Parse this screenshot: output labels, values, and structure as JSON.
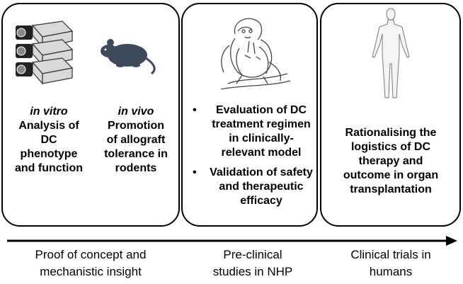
{
  "panels": [
    {
      "columns": [
        {
          "head": "in vitro",
          "text": [
            "Analysis of",
            "DC",
            "phenotype",
            "and function"
          ]
        },
        {
          "head": "in vivo",
          "text": [
            "Promotion",
            "of allograft",
            "tolerance in",
            "rodents"
          ]
        }
      ]
    },
    {
      "bullets": [
        [
          "Evaluation of DC",
          "treatment regimen",
          "in clinically-",
          "relevant model"
        ],
        [
          "Validation of safety",
          "and therapeutic",
          "efficacy"
        ]
      ]
    },
    {
      "text": [
        "Rationalising the",
        "logistics of DC",
        "therapy and",
        "outcome in organ",
        "transplantation"
      ]
    }
  ],
  "stages": [
    [
      "Proof of concept and",
      "mechanistic insight"
    ],
    [
      "Pre-clinical",
      "studies in NHP"
    ],
    [
      "Clinical trials in",
      "humans"
    ]
  ],
  "icons": [
    "culture-flasks-icon",
    "rodent-icon",
    "monkey-icon",
    "human-figure-icon"
  ]
}
